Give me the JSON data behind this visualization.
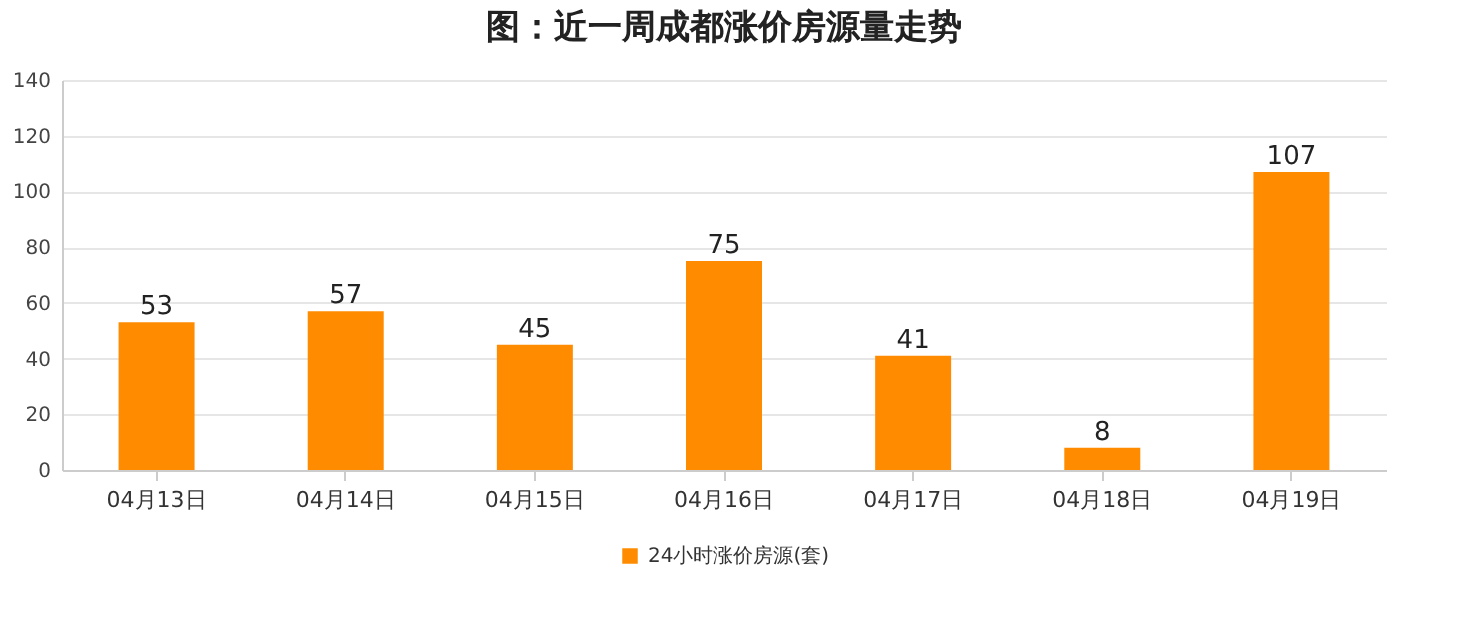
{
  "chart_data": {
    "type": "bar",
    "title": "图：近一周成都涨价房源量走势",
    "categories": [
      "04月13日",
      "04月14日",
      "04月15日",
      "04月16日",
      "04月17日",
      "04月18日",
      "04月19日"
    ],
    "series": [
      {
        "name": "24小时涨价房源(套)",
        "color": "#ff8c00",
        "values": [
          53,
          57,
          45,
          75,
          41,
          8,
          107
        ]
      }
    ],
    "ylim": [
      0,
      140
    ],
    "yticks": [
      0,
      20,
      40,
      60,
      80,
      100,
      120,
      140
    ],
    "grid": "y",
    "legend": "bottom",
    "data_labels": true
  }
}
